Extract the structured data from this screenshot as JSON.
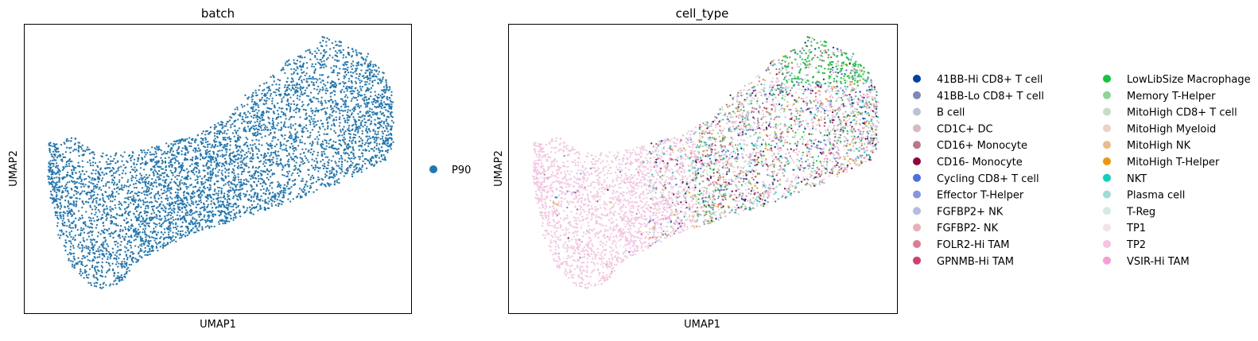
{
  "chart_data": [
    {
      "type": "scatter",
      "title": "batch",
      "xlabel": "UMAP1",
      "ylabel": "UMAP2",
      "xticks": "none",
      "yticks": "none",
      "grid": false,
      "legend_position": "right",
      "series": [
        {
          "name": "P90",
          "color": "#1f77b4"
        }
      ],
      "point_count_approx": 9000
    },
    {
      "type": "scatter",
      "title": "cell_type",
      "xlabel": "UMAP1",
      "ylabel": "UMAP2",
      "xticks": "none",
      "yticks": "none",
      "grid": false,
      "legend_position": "right, two columns",
      "series": [
        {
          "name": "41BB-Hi CD8+ T cell",
          "color": "#023fa5"
        },
        {
          "name": "41BB-Lo CD8+ T cell",
          "color": "#7d87b9"
        },
        {
          "name": "B cell",
          "color": "#bec1d4"
        },
        {
          "name": "CD1C+ DC",
          "color": "#d6bcc0"
        },
        {
          "name": "CD16+ Monocyte",
          "color": "#bb7784"
        },
        {
          "name": "CD16- Monocyte",
          "color": "#8e063b"
        },
        {
          "name": "Cycling CD8+ T cell",
          "color": "#4a6fe3"
        },
        {
          "name": "Effector T-Helper",
          "color": "#8595e1"
        },
        {
          "name": "FGFBP2+ NK",
          "color": "#b5bbe3"
        },
        {
          "name": "FGFBP2- NK",
          "color": "#e6afb9"
        },
        {
          "name": "FOLR2-Hi TAM",
          "color": "#e07b91"
        },
        {
          "name": "GPNMB-Hi TAM",
          "color": "#d33f6a"
        },
        {
          "name": "LowLibSize Macrophage",
          "color": "#11c638"
        },
        {
          "name": "Memory T-Helper",
          "color": "#8dd593"
        },
        {
          "name": "MitoHigh CD8+ T cell",
          "color": "#c6dec7"
        },
        {
          "name": "MitoHigh Myeloid",
          "color": "#ead3c6"
        },
        {
          "name": "MitoHigh NK",
          "color": "#f0b98d"
        },
        {
          "name": "MitoHigh T-Helper",
          "color": "#ef9708"
        },
        {
          "name": "NKT",
          "color": "#0fcfc0"
        },
        {
          "name": "Plasma cell",
          "color": "#9cded6"
        },
        {
          "name": "T-Reg",
          "color": "#d5eae7"
        },
        {
          "name": "TP1",
          "color": "#f3e1eb"
        },
        {
          "name": "TP2",
          "color": "#f6c4e1"
        },
        {
          "name": "VSIR-Hi TAM",
          "color": "#f79cd4"
        }
      ]
    }
  ]
}
